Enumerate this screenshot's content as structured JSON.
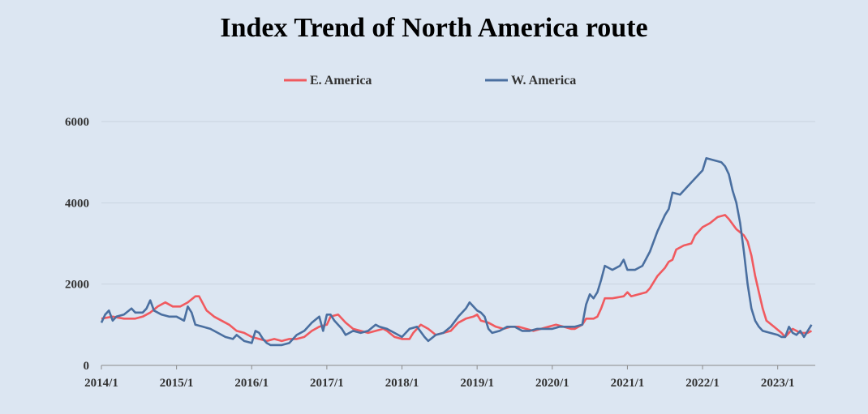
{
  "chart_data": {
    "type": "line",
    "title": "Index Trend of North America  route",
    "xlabel": "",
    "ylabel": "",
    "ylim": [
      0,
      6000
    ],
    "yticks": [
      0,
      2000,
      4000,
      6000
    ],
    "xlim": [
      2014.0,
      2023.5
    ],
    "xticks": [
      "2014/1",
      "2015/1",
      "2016/1",
      "2017/1",
      "2018/1",
      "2019/1",
      "2020/1",
      "2021/1",
      "2022/1",
      "2023/1"
    ],
    "grid": "horizontal",
    "legend_position": "top",
    "colors": {
      "background": "#dce6f2",
      "grid": "#c9d3df",
      "axis": "#8a8a8a"
    },
    "series": [
      {
        "name": "E. America",
        "color": "#f05a5f",
        "points": [
          [
            2014.0,
            1150
          ],
          [
            2014.15,
            1200
          ],
          [
            2014.3,
            1150
          ],
          [
            2014.45,
            1150
          ],
          [
            2014.55,
            1200
          ],
          [
            2014.65,
            1300
          ],
          [
            2014.75,
            1450
          ],
          [
            2014.85,
            1550
          ],
          [
            2014.95,
            1450
          ],
          [
            2015.05,
            1450
          ],
          [
            2015.15,
            1550
          ],
          [
            2015.25,
            1700
          ],
          [
            2015.3,
            1700
          ],
          [
            2015.4,
            1350
          ],
          [
            2015.5,
            1200
          ],
          [
            2015.6,
            1100
          ],
          [
            2015.7,
            1000
          ],
          [
            2015.8,
            850
          ],
          [
            2015.9,
            800
          ],
          [
            2016.0,
            700
          ],
          [
            2016.1,
            650
          ],
          [
            2016.2,
            600
          ],
          [
            2016.3,
            650
          ],
          [
            2016.4,
            600
          ],
          [
            2016.5,
            650
          ],
          [
            2016.6,
            650
          ],
          [
            2016.7,
            700
          ],
          [
            2016.8,
            850
          ],
          [
            2016.9,
            950
          ],
          [
            2017.0,
            1000
          ],
          [
            2017.05,
            1200
          ],
          [
            2017.15,
            1250
          ],
          [
            2017.25,
            1050
          ],
          [
            2017.35,
            900
          ],
          [
            2017.45,
            850
          ],
          [
            2017.55,
            800
          ],
          [
            2017.65,
            850
          ],
          [
            2017.75,
            900
          ],
          [
            2017.8,
            850
          ],
          [
            2017.9,
            700
          ],
          [
            2018.0,
            650
          ],
          [
            2018.1,
            650
          ],
          [
            2018.15,
            800
          ],
          [
            2018.25,
            1000
          ],
          [
            2018.35,
            900
          ],
          [
            2018.45,
            750
          ],
          [
            2018.55,
            800
          ],
          [
            2018.65,
            850
          ],
          [
            2018.75,
            1050
          ],
          [
            2018.85,
            1150
          ],
          [
            2018.95,
            1200
          ],
          [
            2019.0,
            1250
          ],
          [
            2019.05,
            1100
          ],
          [
            2019.15,
            1050
          ],
          [
            2019.25,
            950
          ],
          [
            2019.35,
            900
          ],
          [
            2019.45,
            950
          ],
          [
            2019.55,
            950
          ],
          [
            2019.65,
            900
          ],
          [
            2019.75,
            850
          ],
          [
            2019.85,
            900
          ],
          [
            2019.95,
            950
          ],
          [
            2020.05,
            1000
          ],
          [
            2020.15,
            950
          ],
          [
            2020.25,
            900
          ],
          [
            2020.3,
            900
          ],
          [
            2020.4,
            1000
          ],
          [
            2020.45,
            1150
          ],
          [
            2020.55,
            1150
          ],
          [
            2020.6,
            1200
          ],
          [
            2020.65,
            1400
          ],
          [
            2020.7,
            1650
          ],
          [
            2020.8,
            1650
          ],
          [
            2020.95,
            1700
          ],
          [
            2021.0,
            1800
          ],
          [
            2021.05,
            1700
          ],
          [
            2021.15,
            1750
          ],
          [
            2021.25,
            1800
          ],
          [
            2021.3,
            1900
          ],
          [
            2021.4,
            2200
          ],
          [
            2021.5,
            2400
          ],
          [
            2021.55,
            2550
          ],
          [
            2021.6,
            2600
          ],
          [
            2021.65,
            2850
          ],
          [
            2021.75,
            2950
          ],
          [
            2021.85,
            3000
          ],
          [
            2021.9,
            3200
          ],
          [
            2022.0,
            3400
          ],
          [
            2022.1,
            3500
          ],
          [
            2022.2,
            3650
          ],
          [
            2022.3,
            3700
          ],
          [
            2022.35,
            3600
          ],
          [
            2022.45,
            3350
          ],
          [
            2022.55,
            3200
          ],
          [
            2022.6,
            3050
          ],
          [
            2022.65,
            2700
          ],
          [
            2022.7,
            2200
          ],
          [
            2022.75,
            1800
          ],
          [
            2022.8,
            1400
          ],
          [
            2022.85,
            1100
          ],
          [
            2022.95,
            950
          ],
          [
            2023.05,
            800
          ],
          [
            2023.1,
            700
          ],
          [
            2023.2,
            900
          ],
          [
            2023.3,
            800
          ],
          [
            2023.4,
            800
          ],
          [
            2023.45,
            850
          ]
        ]
      },
      {
        "name": "W. America",
        "color": "#4a6fa0",
        "points": [
          [
            2014.0,
            1050
          ],
          [
            2014.05,
            1250
          ],
          [
            2014.1,
            1350
          ],
          [
            2014.15,
            1100
          ],
          [
            2014.2,
            1200
          ],
          [
            2014.3,
            1250
          ],
          [
            2014.4,
            1400
          ],
          [
            2014.45,
            1300
          ],
          [
            2014.55,
            1300
          ],
          [
            2014.6,
            1400
          ],
          [
            2014.65,
            1600
          ],
          [
            2014.7,
            1350
          ],
          [
            2014.8,
            1250
          ],
          [
            2014.9,
            1200
          ],
          [
            2015.0,
            1200
          ],
          [
            2015.05,
            1150
          ],
          [
            2015.1,
            1100
          ],
          [
            2015.15,
            1450
          ],
          [
            2015.2,
            1300
          ],
          [
            2015.25,
            1000
          ],
          [
            2015.35,
            950
          ],
          [
            2015.45,
            900
          ],
          [
            2015.55,
            800
          ],
          [
            2015.65,
            700
          ],
          [
            2015.75,
            650
          ],
          [
            2015.8,
            750
          ],
          [
            2015.9,
            600
          ],
          [
            2016.0,
            550
          ],
          [
            2016.05,
            850
          ],
          [
            2016.1,
            800
          ],
          [
            2016.15,
            650
          ],
          [
            2016.2,
            550
          ],
          [
            2016.25,
            500
          ],
          [
            2016.3,
            500
          ],
          [
            2016.4,
            500
          ],
          [
            2016.5,
            550
          ],
          [
            2016.6,
            750
          ],
          [
            2016.7,
            850
          ],
          [
            2016.8,
            1050
          ],
          [
            2016.9,
            1200
          ],
          [
            2016.95,
            850
          ],
          [
            2017.0,
            1250
          ],
          [
            2017.05,
            1250
          ],
          [
            2017.1,
            1100
          ],
          [
            2017.2,
            900
          ],
          [
            2017.25,
            750
          ],
          [
            2017.35,
            850
          ],
          [
            2017.45,
            800
          ],
          [
            2017.55,
            850
          ],
          [
            2017.65,
            1000
          ],
          [
            2017.7,
            950
          ],
          [
            2017.8,
            900
          ],
          [
            2017.9,
            800
          ],
          [
            2018.0,
            700
          ],
          [
            2018.1,
            900
          ],
          [
            2018.2,
            950
          ],
          [
            2018.3,
            700
          ],
          [
            2018.35,
            600
          ],
          [
            2018.45,
            750
          ],
          [
            2018.55,
            800
          ],
          [
            2018.65,
            950
          ],
          [
            2018.75,
            1200
          ],
          [
            2018.85,
            1400
          ],
          [
            2018.9,
            1550
          ],
          [
            2018.95,
            1450
          ],
          [
            2019.0,
            1350
          ],
          [
            2019.05,
            1300
          ],
          [
            2019.1,
            1200
          ],
          [
            2019.15,
            900
          ],
          [
            2019.2,
            800
          ],
          [
            2019.3,
            850
          ],
          [
            2019.4,
            950
          ],
          [
            2019.5,
            950
          ],
          [
            2019.6,
            850
          ],
          [
            2019.7,
            850
          ],
          [
            2019.8,
            900
          ],
          [
            2019.9,
            900
          ],
          [
            2020.0,
            900
          ],
          [
            2020.1,
            950
          ],
          [
            2020.2,
            950
          ],
          [
            2020.3,
            950
          ],
          [
            2020.4,
            1000
          ],
          [
            2020.45,
            1500
          ],
          [
            2020.5,
            1750
          ],
          [
            2020.55,
            1650
          ],
          [
            2020.6,
            1800
          ],
          [
            2020.65,
            2100
          ],
          [
            2020.7,
            2450
          ],
          [
            2020.8,
            2350
          ],
          [
            2020.9,
            2450
          ],
          [
            2020.95,
            2600
          ],
          [
            2021.0,
            2350
          ],
          [
            2021.1,
            2350
          ],
          [
            2021.2,
            2450
          ],
          [
            2021.3,
            2800
          ],
          [
            2021.4,
            3300
          ],
          [
            2021.5,
            3700
          ],
          [
            2021.55,
            3850
          ],
          [
            2021.6,
            4250
          ],
          [
            2021.7,
            4200
          ],
          [
            2021.8,
            4400
          ],
          [
            2021.9,
            4600
          ],
          [
            2022.0,
            4800
          ],
          [
            2022.05,
            5100
          ],
          [
            2022.15,
            5050
          ],
          [
            2022.25,
            5000
          ],
          [
            2022.3,
            4900
          ],
          [
            2022.35,
            4700
          ],
          [
            2022.4,
            4300
          ],
          [
            2022.45,
            4000
          ],
          [
            2022.5,
            3500
          ],
          [
            2022.55,
            2800
          ],
          [
            2022.6,
            2000
          ],
          [
            2022.65,
            1400
          ],
          [
            2022.7,
            1100
          ],
          [
            2022.75,
            950
          ],
          [
            2022.8,
            850
          ],
          [
            2022.9,
            800
          ],
          [
            2023.0,
            750
          ],
          [
            2023.05,
            700
          ],
          [
            2023.1,
            700
          ],
          [
            2023.15,
            950
          ],
          [
            2023.2,
            800
          ],
          [
            2023.25,
            750
          ],
          [
            2023.3,
            850
          ],
          [
            2023.35,
            700
          ],
          [
            2023.4,
            850
          ],
          [
            2023.45,
            1000
          ]
        ]
      }
    ]
  }
}
